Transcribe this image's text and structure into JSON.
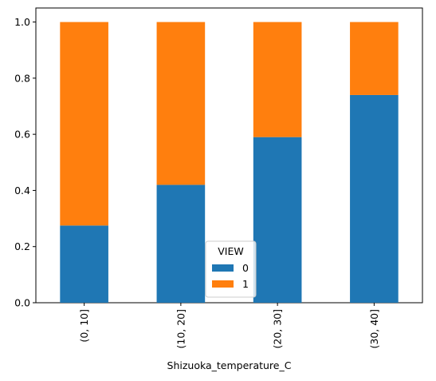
{
  "chart_data": {
    "type": "stacked_bar",
    "x_label": "Shizuoka_temperature_C",
    "categories": [
      "(0, 10]",
      "(10, 20]",
      "(20, 30]",
      "(30, 40]"
    ],
    "series": [
      {
        "name": "0",
        "color": "#1f77b4",
        "values": [
          0.275,
          0.42,
          0.59,
          0.74
        ]
      },
      {
        "name": "1",
        "color": "#ff7f0e",
        "values": [
          0.725,
          0.58,
          0.41,
          0.26
        ]
      }
    ],
    "ylim": [
      0,
      1.05
    ],
    "yticks": [
      {
        "value": 0,
        "label": "0.0"
      },
      0.2,
      0.4,
      0.6,
      0.8,
      {
        "value": 1,
        "label": "1.0"
      }
    ],
    "legend_title": "VIEW",
    "legend_position": "lower center"
  }
}
